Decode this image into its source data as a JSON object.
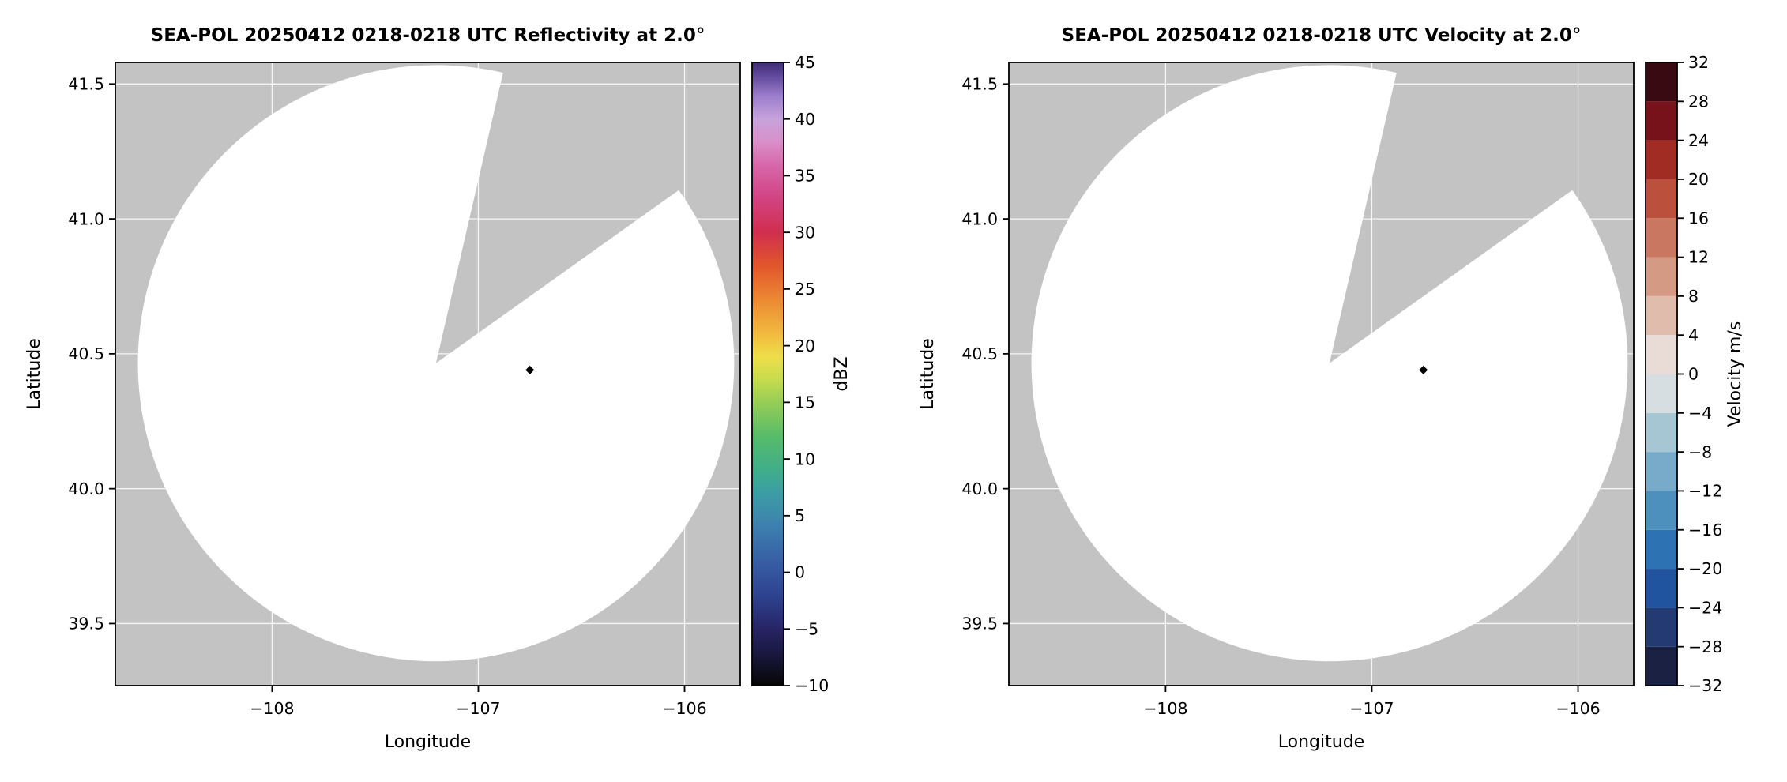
{
  "page": {
    "background": "#ffffff"
  },
  "chart_data": [
    {
      "type": "radar_ppi",
      "title": "SEA-POL 20250412 0218-0218 UTC Reflectivity at 2.0°",
      "xlabel": "Longitude",
      "ylabel": "Latitude",
      "xlim": [
        -108.76,
        -105.73
      ],
      "ylim": [
        39.27,
        41.58
      ],
      "xticks": [
        -108,
        -107,
        -106
      ],
      "xtick_labels": [
        "−108",
        "−107",
        "−106"
      ],
      "yticks": [
        39.5,
        40.0,
        40.5,
        41.0,
        41.5
      ],
      "ytick_labels": [
        "39.5",
        "40.0",
        "40.5",
        "41.0",
        "41.5"
      ],
      "background_color": "#c3c3c3",
      "grid": true,
      "coverage": {
        "center_lon": -107.205,
        "center_lat": 40.465,
        "radius_lat_deg": 1.105,
        "missing_sector_azimuth_deg": [
          13,
          54.5
        ],
        "fill": "#ffffff"
      },
      "radar_marker": {
        "lon": -106.75,
        "lat": 40.44,
        "shape": "diamond",
        "color": "#000000"
      },
      "colorbar": {
        "label": "dBZ",
        "min": -10,
        "max": 45,
        "style": "continuous",
        "ticks": [
          -10,
          -5,
          0,
          5,
          10,
          15,
          20,
          25,
          30,
          35,
          40,
          45
        ],
        "tick_labels": [
          "−10",
          "−5",
          "0",
          "5",
          "10",
          "15",
          "20",
          "25",
          "30",
          "35",
          "40",
          "45"
        ],
        "stops": [
          {
            "value": -10,
            "color": "#060606"
          },
          {
            "value": -7,
            "color": "#1b1942"
          },
          {
            "value": -5,
            "color": "#272465"
          },
          {
            "value": -2,
            "color": "#2e4390"
          },
          {
            "value": 1,
            "color": "#375fa5"
          },
          {
            "value": 4,
            "color": "#3d7fae"
          },
          {
            "value": 7,
            "color": "#3c9da5"
          },
          {
            "value": 9,
            "color": "#3fae8a"
          },
          {
            "value": 12,
            "color": "#57bb6a"
          },
          {
            "value": 15,
            "color": "#96cd55"
          },
          {
            "value": 17,
            "color": "#c6dc4d"
          },
          {
            "value": 19,
            "color": "#eede49"
          },
          {
            "value": 21,
            "color": "#f2bb3f"
          },
          {
            "value": 24,
            "color": "#ec8a33"
          },
          {
            "value": 27,
            "color": "#e2572b"
          },
          {
            "value": 30,
            "color": "#d12e4e"
          },
          {
            "value": 33,
            "color": "#d24383"
          },
          {
            "value": 36,
            "color": "#d768ab"
          },
          {
            "value": 38,
            "color": "#d98fc9"
          },
          {
            "value": 40,
            "color": "#c7a3dc"
          },
          {
            "value": 42,
            "color": "#9b7ecc"
          },
          {
            "value": 44,
            "color": "#5c4496"
          },
          {
            "value": 45,
            "color": "#3d2d73"
          }
        ]
      }
    },
    {
      "type": "radar_ppi",
      "title": "SEA-POL 20250412 0218-0218 UTC Velocity at 2.0°",
      "xlabel": "Longitude",
      "ylabel": "Latitude",
      "xlim": [
        -108.76,
        -105.73
      ],
      "ylim": [
        39.27,
        41.58
      ],
      "xticks": [
        -108,
        -107,
        -106
      ],
      "xtick_labels": [
        "−108",
        "−107",
        "−106"
      ],
      "yticks": [
        39.5,
        40.0,
        40.5,
        41.0,
        41.5
      ],
      "ytick_labels": [
        "39.5",
        "40.0",
        "40.5",
        "41.0",
        "41.5"
      ],
      "background_color": "#c3c3c3",
      "grid": true,
      "coverage": {
        "center_lon": -107.205,
        "center_lat": 40.465,
        "radius_lat_deg": 1.105,
        "missing_sector_azimuth_deg": [
          13,
          54.5
        ],
        "fill": "#ffffff"
      },
      "radar_marker": {
        "lon": -106.75,
        "lat": 40.44,
        "shape": "diamond",
        "color": "#000000"
      },
      "colorbar": {
        "label": "Velocity m/s",
        "min": -32,
        "max": 32,
        "style": "discrete",
        "ticks": [
          -32,
          -28,
          -24,
          -20,
          -16,
          -12,
          -8,
          -4,
          0,
          4,
          8,
          12,
          16,
          20,
          24,
          28,
          32
        ],
        "tick_labels": [
          "−32",
          "−28",
          "−24",
          "−20",
          "−16",
          "−12",
          "−8",
          "−4",
          "0",
          "4",
          "8",
          "12",
          "16",
          "20",
          "24",
          "28",
          "32"
        ],
        "cells": [
          {
            "range": [
              -32,
              -28
            ],
            "color": "#1a2142"
          },
          {
            "range": [
              -28,
              -24
            ],
            "color": "#233a72"
          },
          {
            "range": [
              -24,
              -20
            ],
            "color": "#20549f"
          },
          {
            "range": [
              -20,
              -16
            ],
            "color": "#2d72b2"
          },
          {
            "range": [
              -16,
              -12
            ],
            "color": "#4d90bd"
          },
          {
            "range": [
              -12,
              -8
            ],
            "color": "#78abc9"
          },
          {
            "range": [
              -8,
              -4
            ],
            "color": "#a7c6d4"
          },
          {
            "range": [
              -4,
              0
            ],
            "color": "#d6dee1"
          },
          {
            "range": [
              0,
              4
            ],
            "color": "#e9dcd6"
          },
          {
            "range": [
              4,
              8
            ],
            "color": "#dfbcab"
          },
          {
            "range": [
              8,
              12
            ],
            "color": "#d49a83"
          },
          {
            "range": [
              12,
              16
            ],
            "color": "#c97760"
          },
          {
            "range": [
              16,
              20
            ],
            "color": "#bb513d"
          },
          {
            "range": [
              20,
              24
            ],
            "color": "#a02c24"
          },
          {
            "range": [
              24,
              28
            ],
            "color": "#77121a"
          },
          {
            "range": [
              28,
              32
            ],
            "color": "#3a0a12"
          }
        ]
      }
    }
  ]
}
